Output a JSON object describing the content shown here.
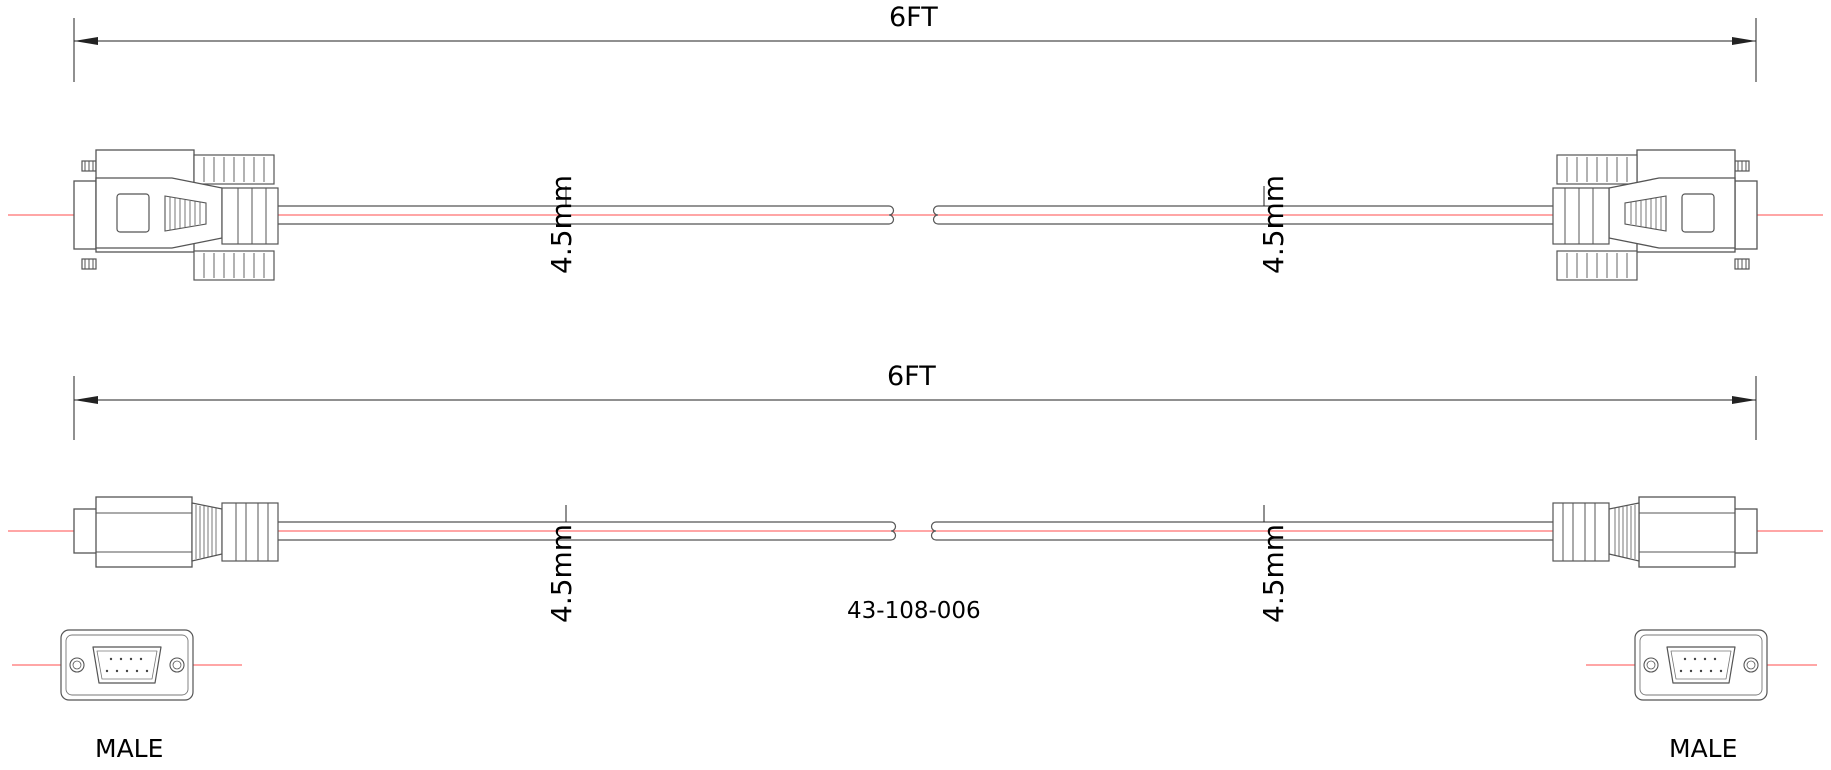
{
  "drawing": {
    "top_view": {
      "length_label": "6FT",
      "diameter_left": "4.5mm",
      "diameter_right": "4.5mm"
    },
    "side_view": {
      "length_label": "6FT",
      "diameter_left": "4.5mm",
      "diameter_right": "4.5mm"
    },
    "part_number": "43-108-006",
    "left_connector_label": "MALE",
    "right_connector_label": "MALE",
    "colors": {
      "line": "#555555",
      "dimension": "#222222",
      "centerline": "#ff4d4d"
    }
  }
}
